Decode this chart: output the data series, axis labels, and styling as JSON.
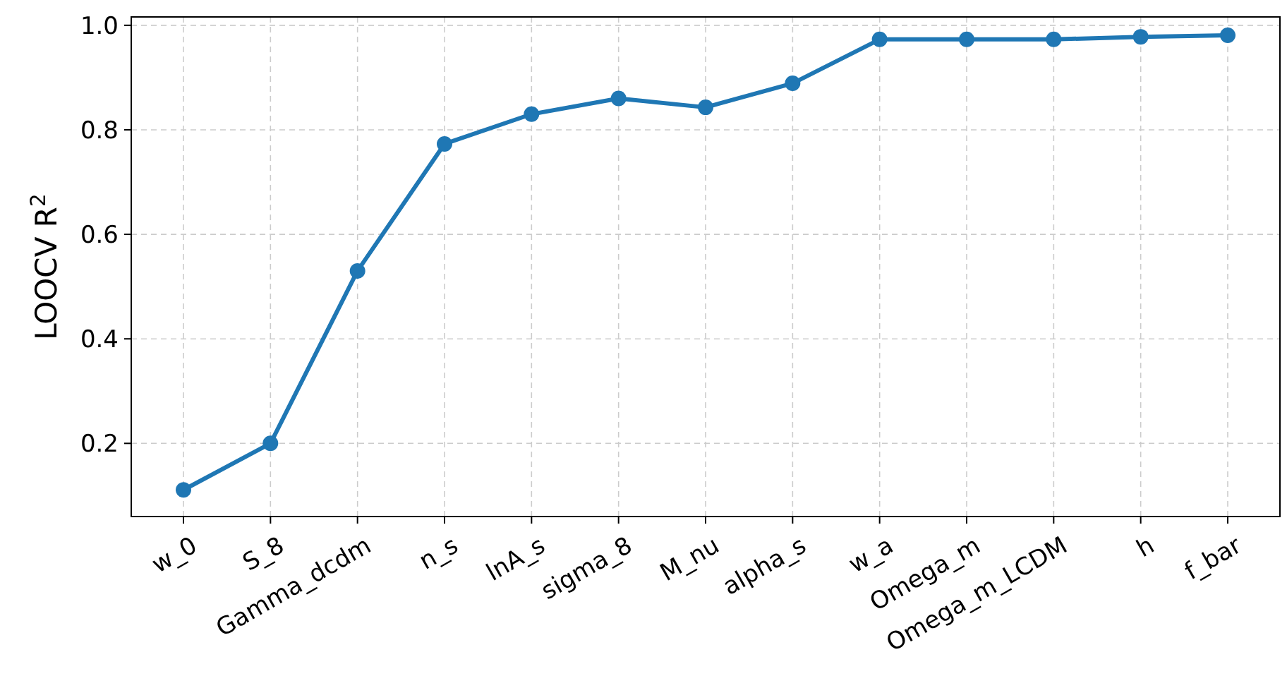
{
  "chart_data": {
    "type": "line",
    "ylabel": "LOOCV R$^{2}$",
    "categories": [
      "w_0",
      "S_8",
      "Gamma_dcdm",
      "n_s",
      "lnA_s",
      "sigma_8",
      "M_nu",
      "alpha_s",
      "w_a",
      "Omega_m",
      "Omega_m_LCDM",
      "h",
      "f_bar"
    ],
    "series": [
      {
        "color": "#1f77b4",
        "values": [
          0.111,
          0.2,
          0.53,
          0.773,
          0.83,
          0.86,
          0.843,
          0.889,
          0.973,
          0.973,
          0.973,
          0.978,
          0.981
        ]
      }
    ],
    "ylim": [
      0.06,
      1.016
    ],
    "yticks": [
      {
        "value": 0.2,
        "label": "0.2"
      },
      {
        "value": 0.4,
        "label": "0.4"
      },
      {
        "value": 0.6,
        "label": "0.6"
      },
      {
        "value": 0.8,
        "label": "0.8"
      },
      {
        "value": 1.0,
        "label": "1.0"
      }
    ],
    "grid": true,
    "marker": "circle",
    "line_style": "solid"
  }
}
